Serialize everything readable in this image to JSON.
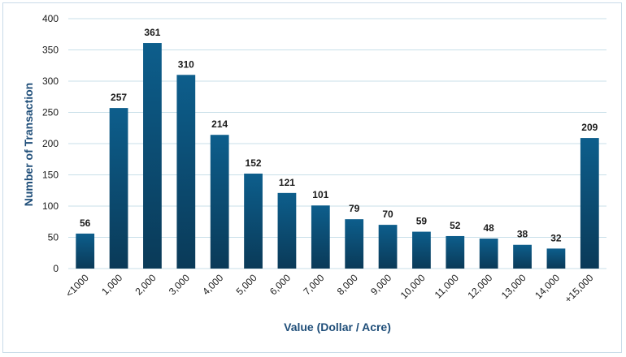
{
  "chart_data": {
    "type": "bar",
    "title": "",
    "xlabel": "Value (Dollar / Acre)",
    "ylabel": "Number of Transaction",
    "ylim": [
      0,
      400
    ],
    "yticks": [
      0,
      50,
      100,
      150,
      200,
      250,
      300,
      350,
      400
    ],
    "grid": true,
    "legend": "none",
    "categories": [
      "<1000",
      "1,000",
      "2,000",
      "3,000",
      "4,000",
      "5,000",
      "6,000",
      "7,000",
      "8,000",
      "9,000",
      "10,000",
      "11,000",
      "12,000",
      "13,000",
      "14,000",
      "+15,000"
    ],
    "values": [
      56,
      257,
      361,
      310,
      214,
      152,
      121,
      101,
      79,
      70,
      59,
      52,
      48,
      38,
      32,
      209
    ],
    "colors": {
      "bar_top": "#0d5e8c",
      "bar_bottom": "#0a3a58",
      "grid": "#c8dfe9",
      "axis_title": "#1f4e79"
    }
  }
}
